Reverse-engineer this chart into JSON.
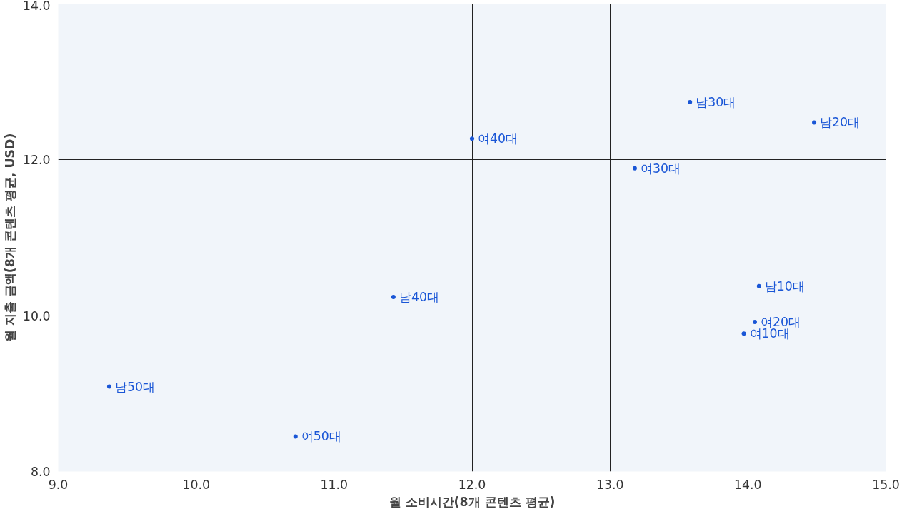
{
  "chart_data": {
    "type": "scatter",
    "xlabel": "월 소비시간(8개 콘텐츠 평균)",
    "ylabel": "월 지출 금액(8개 콘텐츠 평균, USD)",
    "x": [
      9.37,
      10.72,
      11.43,
      12.0,
      13.18,
      13.58,
      14.48,
      14.08,
      14.05,
      13.97
    ],
    "values": [
      9.09,
      8.45,
      10.24,
      12.27,
      11.89,
      12.74,
      12.48,
      10.38,
      9.92,
      9.77
    ],
    "color": "#1a56d6",
    "marker": "circle",
    "grid": true,
    "xlim": [
      9,
      15
    ],
    "ylim": [
      8,
      14
    ],
    "xticks": [
      {
        "value": 9,
        "label": "9.0"
      },
      {
        "value": 10,
        "label": "10.0"
      },
      {
        "value": 11,
        "label": "11.0"
      },
      {
        "value": 12,
        "label": "12.0"
      },
      {
        "value": 13,
        "label": "13.0"
      },
      {
        "value": 14,
        "label": "14.0"
      },
      {
        "value": 15,
        "label": "15.0"
      }
    ],
    "yticks": [
      {
        "value": 8,
        "label": "8.0"
      },
      {
        "value": 10,
        "label": "10.0"
      },
      {
        "value": 12,
        "label": "12.0"
      },
      {
        "value": 14,
        "label": "14.0"
      }
    ],
    "annotations": [
      {
        "text": "남50대",
        "x": 9.37,
        "y": 9.09
      },
      {
        "text": "여50대",
        "x": 10.72,
        "y": 8.45
      },
      {
        "text": "남40대",
        "x": 11.43,
        "y": 10.24
      },
      {
        "text": "여40대",
        "x": 12.0,
        "y": 12.27
      },
      {
        "text": "여30대",
        "x": 13.18,
        "y": 11.89
      },
      {
        "text": "남30대",
        "x": 13.58,
        "y": 12.74
      },
      {
        "text": "남20대",
        "x": 14.48,
        "y": 12.48
      },
      {
        "text": "남10대",
        "x": 14.08,
        "y": 10.38
      },
      {
        "text": "여20대",
        "x": 14.05,
        "y": 9.92
      },
      {
        "text": "여10대",
        "x": 13.97,
        "y": 9.77
      }
    ]
  }
}
